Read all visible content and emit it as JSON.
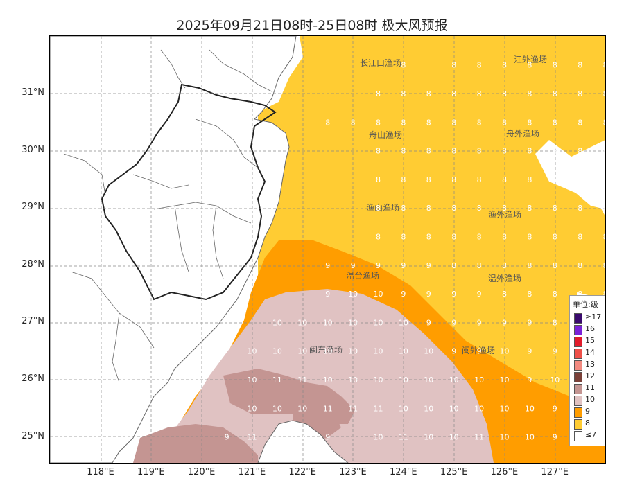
{
  "title": "2025年09月21日08时-25日08时 极大风预报",
  "longitude_labels": [
    "118°E",
    "119°E",
    "120°E",
    "121°E",
    "122°E",
    "123°E",
    "124°E",
    "125°E",
    "126°E",
    "127°E"
  ],
  "latitude_labels": [
    "31°N",
    "30°N",
    "29°N",
    "28°N",
    "27°N",
    "26°N",
    "25°N"
  ],
  "fishing_grounds": [
    "长江口渔场",
    "江外渔场",
    "舟山渔场",
    "舟外渔场",
    "渔山渔场",
    "渔外渔场",
    "温台渔场",
    "温外渔场",
    "闽东渔场",
    "闽外渔场"
  ],
  "legend": {
    "title": "单位:级",
    "items": [
      {
        "label": "≥17",
        "color": "#3a0a6e"
      },
      {
        "label": "16",
        "color": "#7a22d8"
      },
      {
        "label": "15",
        "color": "#e21b2a"
      },
      {
        "label": "14",
        "color": "#ee4f48"
      },
      {
        "label": "13",
        "color": "#f28a80"
      },
      {
        "label": "12",
        "color": "#7a4038"
      },
      {
        "label": "11",
        "color": "#c49592"
      },
      {
        "label": "10",
        "color": "#e0c2c2"
      },
      {
        "label": "9",
        "color": "#ff9d00"
      },
      {
        "label": "8",
        "color": "#ffcc33"
      },
      {
        "label": "≤7",
        "color": "#ffffff"
      }
    ]
  },
  "wind_grid": {
    "lats": [
      31.5,
      31.0,
      30.5,
      30.0,
      29.5,
      29.0,
      28.5,
      28.0,
      27.5,
      27.0,
      26.5,
      26.0,
      25.5,
      25.0
    ],
    "rows": [
      [
        null,
        null,
        null,
        null,
        null,
        null,
        null,
        null,
        null,
        null,
        null,
        8,
        null,
        8,
        8,
        8,
        8,
        8,
        8,
        8,
        8,
        8
      ],
      [
        null,
        null,
        null,
        null,
        null,
        null,
        null,
        null,
        null,
        null,
        8,
        8,
        8,
        8,
        8,
        8,
        8,
        8,
        8,
        8,
        8,
        8
      ],
      [
        null,
        null,
        null,
        null,
        null,
        null,
        null,
        null,
        8,
        8,
        8,
        8,
        8,
        8,
        8,
        8,
        8,
        8,
        8,
        8,
        8,
        8
      ],
      [
        null,
        null,
        null,
        null,
        null,
        null,
        null,
        null,
        null,
        null,
        8,
        8,
        8,
        8,
        8,
        8,
        8,
        8,
        8,
        8,
        8,
        8
      ],
      [
        null,
        null,
        null,
        null,
        null,
        null,
        null,
        null,
        null,
        null,
        8,
        8,
        8,
        8,
        8,
        8,
        8,
        8,
        8,
        8,
        8,
        null
      ],
      [
        null,
        null,
        null,
        null,
        null,
        null,
        null,
        null,
        null,
        null,
        8,
        8,
        8,
        8,
        8,
        8,
        8,
        8,
        8,
        8,
        8,
        8
      ],
      [
        null,
        null,
        null,
        null,
        null,
        null,
        null,
        null,
        null,
        null,
        8,
        8,
        8,
        8,
        8,
        8,
        8,
        8,
        8,
        8,
        8,
        8
      ],
      [
        null,
        null,
        null,
        null,
        null,
        null,
        null,
        null,
        9,
        9,
        9,
        9,
        9,
        8,
        8,
        8,
        8,
        8,
        8,
        8,
        8,
        8
      ],
      [
        null,
        null,
        null,
        null,
        null,
        null,
        null,
        null,
        9,
        10,
        10,
        9,
        9,
        9,
        9,
        8,
        8,
        8,
        8,
        8,
        8,
        8
      ],
      [
        null,
        null,
        null,
        null,
        null,
        null,
        10,
        10,
        10,
        10,
        10,
        10,
        9,
        9,
        9,
        9,
        9,
        8,
        8,
        8,
        8,
        8
      ],
      [
        null,
        null,
        null,
        null,
        null,
        10,
        10,
        10,
        10,
        10,
        10,
        10,
        10,
        9,
        9,
        10,
        9,
        9,
        8,
        8,
        8,
        null
      ],
      [
        null,
        null,
        null,
        null,
        null,
        10,
        11,
        11,
        10,
        10,
        10,
        10,
        10,
        10,
        10,
        10,
        9,
        10,
        8,
        8,
        9,
        null
      ],
      [
        null,
        null,
        null,
        null,
        null,
        10,
        10,
        10,
        11,
        11,
        11,
        10,
        10,
        10,
        10,
        10,
        10,
        9,
        9,
        9,
        9,
        null
      ],
      [
        null,
        null,
        null,
        null,
        9,
        11,
        10,
        10,
        9,
        null,
        10,
        11,
        10,
        10,
        11,
        10,
        10,
        9,
        9,
        9,
        9,
        null
      ]
    ]
  }
}
